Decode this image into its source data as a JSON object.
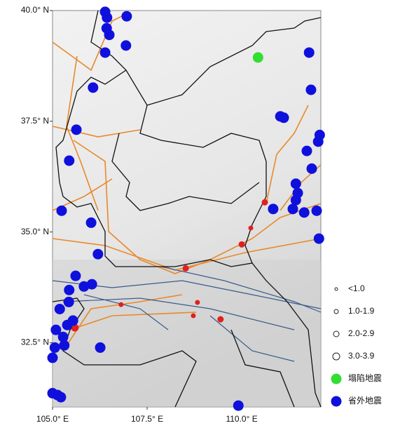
{
  "map": {
    "lon_range": [
      105,
      112.09
    ],
    "lat_range": [
      40,
      31.05
    ],
    "lat_ticks": [
      {
        "value": 40,
        "label": "40.0° N"
      },
      {
        "value": 37.5,
        "label": "37.5° N"
      },
      {
        "value": 35,
        "label": "35.0° N"
      },
      {
        "value": 32.5,
        "label": "32.5° N"
      }
    ],
    "lon_ticks": [
      {
        "value": 105,
        "label": "105.0° E"
      },
      {
        "value": 107.5,
        "label": "107.5° E"
      },
      {
        "value": 110,
        "label": "110.0° E"
      }
    ],
    "legend": [
      {
        "label": "<1.0",
        "color": "#e02020",
        "points": []
      },
      {
        "label": "1.0-1.9",
        "color": "#e02020",
        "points": [
          [
            110.24,
            35.09
          ],
          [
            108.83,
            33.41
          ],
          [
            108.72,
            33.11
          ],
          [
            106.81,
            33.36
          ]
        ]
      },
      {
        "label": "2.0-2.9",
        "color": "#e02020",
        "points": [
          [
            108.52,
            34.18
          ],
          [
            110.0,
            34.72
          ],
          [
            109.44,
            33.03
          ],
          [
            110.61,
            35.67
          ]
        ]
      },
      {
        "label": "3.0-3.9",
        "color": "#e02020",
        "points": [
          [
            105.59,
            32.84
          ]
        ]
      },
      {
        "label": "塌陷地震",
        "color": "#33dd33",
        "points": [
          [
            110.43,
            38.94
          ]
        ]
      },
      {
        "label": "省外地震",
        "color": "#1010dd",
        "points": [
          [
            106.39,
            39.97
          ],
          [
            106.44,
            39.84
          ],
          [
            106.43,
            39.6
          ],
          [
            106.5,
            39.45
          ],
          [
            106.96,
            39.87
          ],
          [
            106.94,
            39.21
          ],
          [
            106.39,
            39.05
          ],
          [
            106.07,
            38.26
          ],
          [
            105.63,
            37.31
          ],
          [
            105.44,
            36.61
          ],
          [
            105.24,
            35.48
          ],
          [
            106.02,
            35.21
          ],
          [
            106.2,
            34.5
          ],
          [
            105.61,
            34.01
          ],
          [
            105.83,
            33.77
          ],
          [
            106.04,
            33.82
          ],
          [
            105.44,
            33.69
          ],
          [
            105.43,
            33.42
          ],
          [
            105.19,
            33.26
          ],
          [
            105.09,
            32.79
          ],
          [
            105.28,
            32.63
          ],
          [
            105.06,
            32.39
          ],
          [
            105.0,
            32.16
          ],
          [
            105.31,
            32.44
          ],
          [
            106.26,
            32.39
          ],
          [
            105.0,
            31.36
          ],
          [
            105.13,
            31.32
          ],
          [
            105.22,
            31.27
          ],
          [
            109.91,
            31.08
          ],
          [
            111.78,
            39.05
          ],
          [
            111.83,
            38.21
          ],
          [
            111.02,
            37.61
          ],
          [
            111.11,
            37.58
          ],
          [
            112.06,
            37.19
          ],
          [
            112.02,
            37.04
          ],
          [
            111.72,
            36.83
          ],
          [
            111.85,
            36.43
          ],
          [
            111.43,
            36.09
          ],
          [
            111.48,
            35.88
          ],
          [
            111.43,
            35.72
          ],
          [
            111.35,
            35.52
          ],
          [
            110.83,
            35.52
          ],
          [
            111.65,
            35.44
          ],
          [
            111.98,
            35.48
          ],
          [
            112.04,
            34.85
          ],
          [
            105.39,
            32.9
          ],
          [
            105.54,
            33.0
          ]
        ]
      }
    ]
  }
}
